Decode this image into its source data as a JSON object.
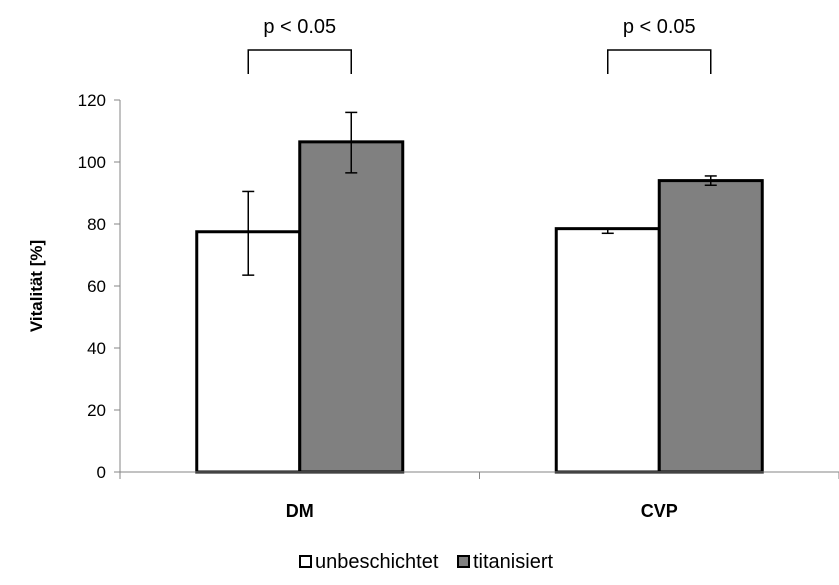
{
  "chart_data": {
    "type": "bar",
    "ylabel": "Vitalität [%]",
    "xlabel": "",
    "ylim": [
      0,
      120
    ],
    "yticks": [
      0,
      20,
      40,
      60,
      80,
      100,
      120
    ],
    "grid": false,
    "legend_placement": "bottom",
    "categories": [
      "DM",
      "CVP"
    ],
    "series": [
      {
        "name": "unbeschichtet",
        "color": "#ffffff",
        "values": [
          77.5,
          78.5
        ],
        "error_low": [
          63.5,
          77
        ],
        "error_high": [
          90.5,
          78.5
        ]
      },
      {
        "name": "titanisiert",
        "color": "#808080",
        "values": [
          106.5,
          94
        ],
        "error_low": [
          96.5,
          92.5
        ],
        "error_high": [
          116,
          95.5
        ]
      }
    ],
    "annotations": [
      {
        "category": "DM",
        "text": "p <  0.05"
      },
      {
        "category": "CVP",
        "text": "p <  0.05"
      }
    ]
  }
}
